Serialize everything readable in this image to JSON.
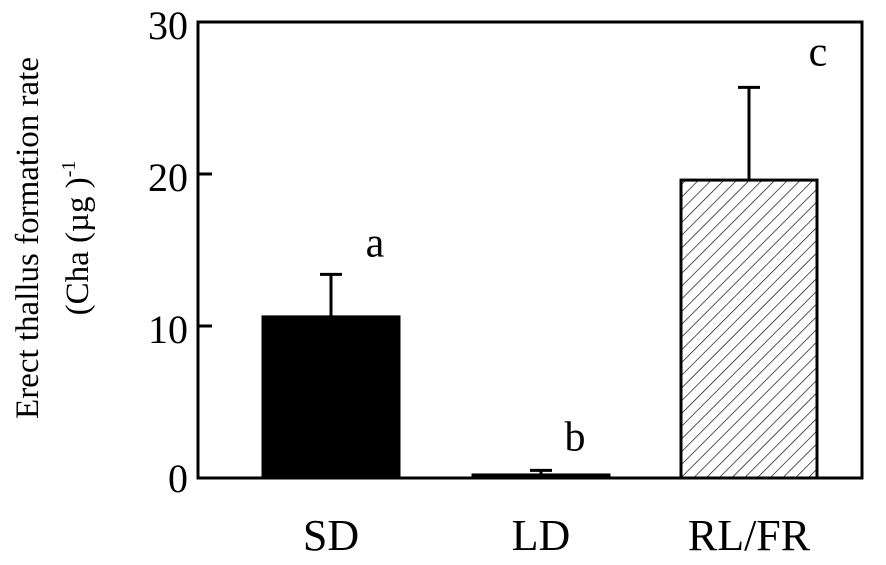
{
  "chart_data": {
    "type": "bar",
    "categories": [
      "SD",
      "LD",
      "RL/FR"
    ],
    "values": [
      10.6,
      0.2,
      19.6
    ],
    "errors": [
      2.8,
      0.3,
      6.1
    ],
    "significance_letters": [
      "a",
      "b",
      "c"
    ],
    "bar_styles": [
      "solid",
      "solid",
      "hatched"
    ],
    "ylabel_line1": "Erect thallus formation rate",
    "ylabel_line2": "(Cha (µg )",
    "ylabel_superscript": "-1",
    "ylim": [
      0,
      30
    ],
    "yticks": [
      "0",
      "10",
      "20",
      "30"
    ],
    "grid": false,
    "colors": {
      "bar": "#000000",
      "hatched_fill": "#ffffff",
      "axis": "#000000"
    }
  }
}
